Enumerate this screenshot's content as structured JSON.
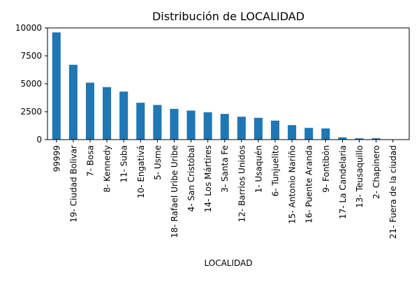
{
  "colors": {
    "bar": "#1f77b4",
    "axis": "#000000",
    "background": "#ffffff"
  },
  "chart_data": {
    "type": "bar",
    "title": "Distribución de LOCALIDAD",
    "xlabel": "LOCALIDAD",
    "ylabel": "",
    "ylim": [
      0,
      10000
    ],
    "yticks": [
      0,
      2500,
      5000,
      7500,
      10000
    ],
    "grid": false,
    "legend": "none",
    "categories": [
      "99999",
      "19- Ciudad Bolivar",
      "7- Bosa",
      "8- Kennedy",
      "11- Suba",
      "10- Engativá",
      "5- Usme",
      "18- Rafael Uribe Uribe",
      "4- San Cristóbal",
      "14- Los Mártires",
      "3- Santa Fe",
      "12- Barrios Unidos",
      "1- Usaquén",
      "6- Tunjuelito",
      "15- Antonio Nariño",
      "16- Puente Aranda",
      "9- Fontibón",
      "17- La Candelaria",
      "13- Teusaquillo",
      "2- Chapinero",
      "21- Fuera de la ciudad"
    ],
    "values": [
      9600,
      6700,
      5100,
      4700,
      4300,
      3300,
      3100,
      2750,
      2600,
      2450,
      2300,
      2050,
      1950,
      1700,
      1300,
      1050,
      1000,
      200,
      120,
      130,
      20
    ]
  }
}
